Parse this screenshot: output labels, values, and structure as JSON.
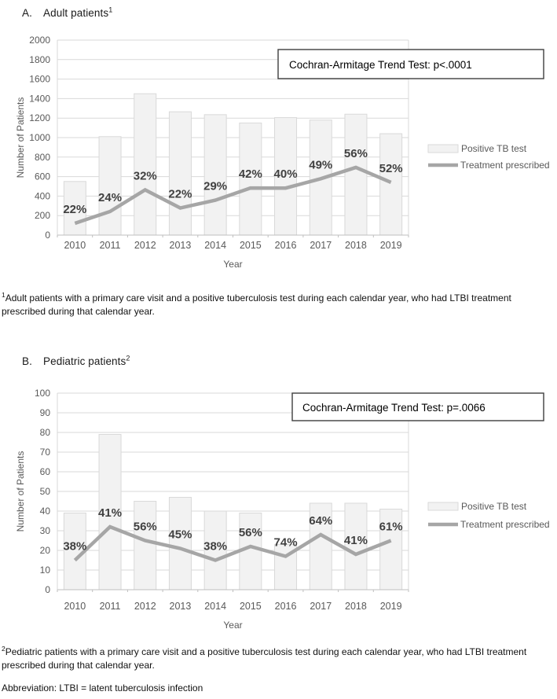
{
  "colors": {
    "bar_fill": "#f2f2f2",
    "bar_border": "#d9d9d9",
    "line": "#a6a6a6",
    "grid": "#d9d9d9",
    "axis_line": "#bfbfbf",
    "axis_text": "#595959",
    "pct_label": "#404040",
    "box_border": "#3f3f3f",
    "box_text": "#000000"
  },
  "panels": [
    {
      "label": "A.",
      "title": "Adult patients",
      "title_sup": "1",
      "footnote_sup": "1",
      "footnote": "Adult patients with a primary care visit and a positive tuberculosis test during each calendar year, who had LTBI treatment prescribed during that calendar year."
    },
    {
      "label": "B.",
      "title": "Pediatric patients",
      "title_sup": "2",
      "footnote_sup": "2",
      "footnote": "Pediatric patients with a primary care visit and a positive tuberculosis test during each calendar year, who had LTBI treatment prescribed during that calendar year."
    }
  ],
  "abbreviation": "Abbreviation: LTBI = latent tuberculosis infection",
  "chart_data": [
    {
      "type": "bar+line",
      "panel": "A. Adult patients",
      "categories": [
        "2010",
        "2011",
        "2012",
        "2013",
        "2014",
        "2015",
        "2016",
        "2017",
        "2018",
        "2019"
      ],
      "series": [
        {
          "name": "Positive TB test",
          "type": "bar",
          "values": [
            550,
            1010,
            1450,
            1265,
            1235,
            1150,
            1205,
            1180,
            1240,
            1040
          ]
        },
        {
          "name": "Treatment prescribed",
          "type": "line",
          "values": [
            121,
            242,
            464,
            278,
            358,
            483,
            482,
            578,
            694,
            541
          ]
        }
      ],
      "point_labels": [
        "22%",
        "24%",
        "32%",
        "22%",
        "29%",
        "42%",
        "40%",
        "49%",
        "56%",
        "52%"
      ],
      "annotation": "Cochran-Armitage Trend Test: p<.0001",
      "xlabel": "Year",
      "ylabel": "Number of Patients",
      "ylim": [
        0,
        2000
      ],
      "ytick_step": 200,
      "grid": "horizontal",
      "legend": [
        "Positive TB test",
        "Treatment prescribed"
      ],
      "legend_position": "right"
    },
    {
      "type": "bar+line",
      "panel": "B. Pediatric patients",
      "categories": [
        "2010",
        "2011",
        "2012",
        "2013",
        "2014",
        "2015",
        "2016",
        "2017",
        "2018",
        "2019"
      ],
      "series": [
        {
          "name": "Positive TB test",
          "type": "bar",
          "values": [
            39,
            79,
            45,
            47,
            40,
            39,
            23,
            44,
            44,
            41
          ]
        },
        {
          "name": "Treatment prescribed",
          "type": "line",
          "values": [
            15,
            32,
            25,
            21,
            15,
            22,
            17,
            28,
            18,
            25
          ]
        }
      ],
      "point_labels": [
        "38%",
        "41%",
        "56%",
        "45%",
        "38%",
        "56%",
        "74%",
        "64%",
        "41%",
        "61%"
      ],
      "annotation": "Cochran-Armitage Trend Test: p=.0066",
      "xlabel": "Year",
      "ylabel": "Number of Patients",
      "ylim": [
        0,
        100
      ],
      "ytick_step": 10,
      "grid": "horizontal",
      "legend": [
        "Positive TB test",
        "Treatment prescribed"
      ],
      "legend_position": "right"
    }
  ]
}
